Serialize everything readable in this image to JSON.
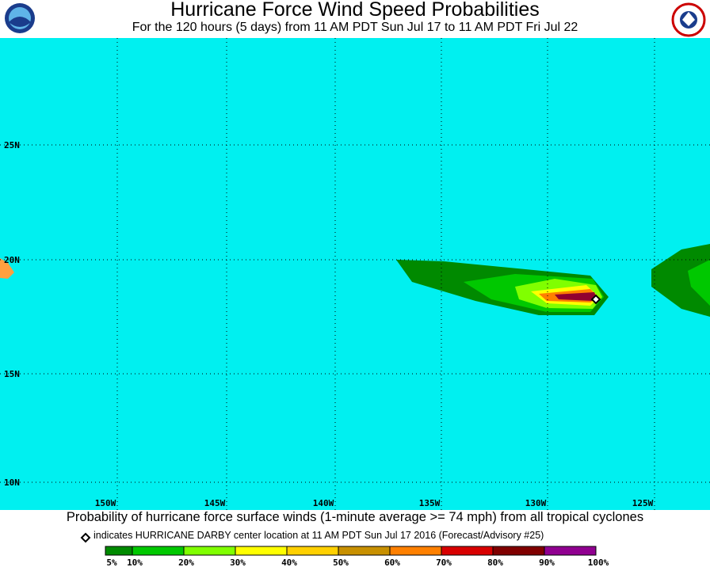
{
  "header": {
    "title": "Hurricane Force Wind Speed Probabilities",
    "subtitle": "For the 120 hours (5 days) from 11 AM PDT Sun Jul 17 to 11 AM PDT Fri Jul 22"
  },
  "map": {
    "lat_labels": [
      "25N",
      "20N",
      "15N",
      "10N"
    ],
    "lon_labels": [
      "150W",
      "145W",
      "140W",
      "135W",
      "130W",
      "125W"
    ]
  },
  "caption": "Probability of hurricane force surface winds (1-minute average >= 74 mph) from all tropical cyclones",
  "note": "indicates HURRICANE DARBY center location at 11 AM PDT Sun Jul 17 2016 (Forecast/Advisory #25)",
  "legend": {
    "labels": [
      "5%",
      "10%",
      "20%",
      "30%",
      "40%",
      "50%",
      "60%",
      "70%",
      "80%",
      "90%",
      "100%"
    ],
    "colors": [
      "#008a00",
      "#00c800",
      "#80ff00",
      "#ffff00",
      "#ffd000",
      "#c89000",
      "#ff8000",
      "#d80000",
      "#800000",
      "#900090"
    ]
  }
}
